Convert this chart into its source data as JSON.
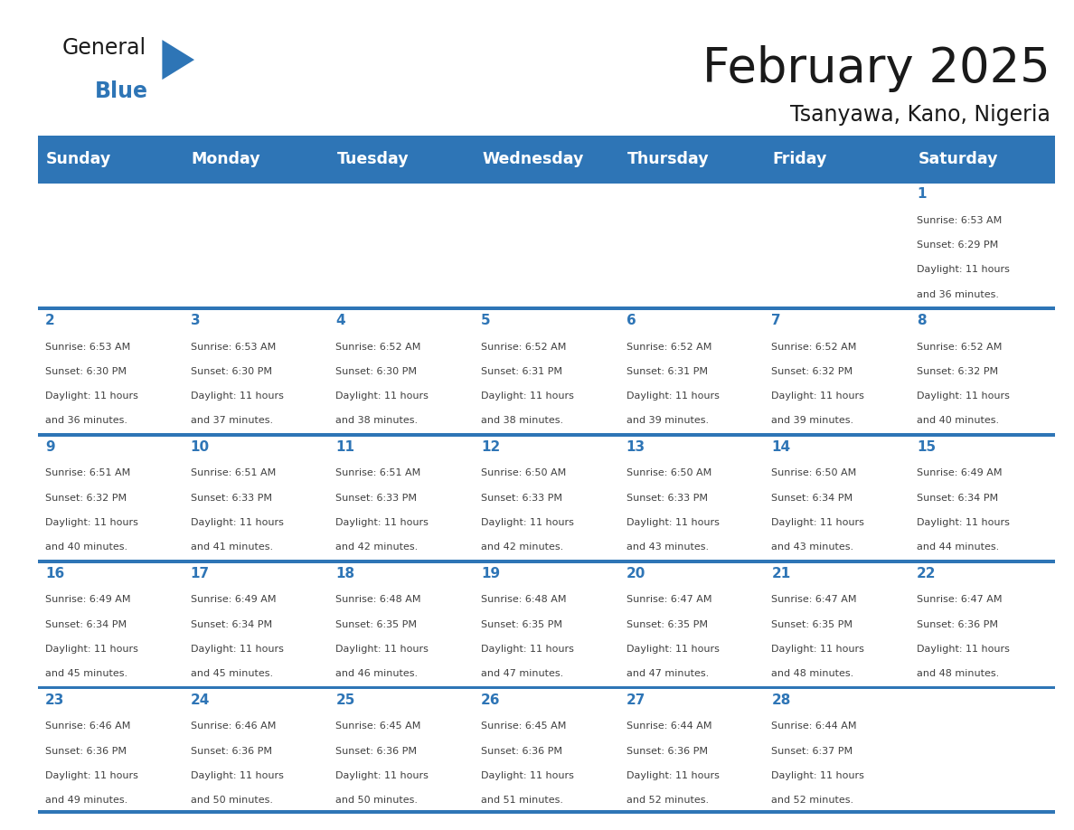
{
  "title": "February 2025",
  "subtitle": "Tsanyawa, Kano, Nigeria",
  "days_of_week": [
    "Sunday",
    "Monday",
    "Tuesday",
    "Wednesday",
    "Thursday",
    "Friday",
    "Saturday"
  ],
  "header_bg": "#2E75B6",
  "header_text": "#FFFFFF",
  "cell_bg_white": "#FFFFFF",
  "border_color": "#2E75B6",
  "text_color": "#404040",
  "day_number_color": "#2E75B6",
  "title_color": "#1A1A1A",
  "subtitle_color": "#1A1A1A",
  "logo_general_color": "#1A1A1A",
  "logo_blue_color": "#2E75B6",
  "calendar_data": [
    [
      null,
      null,
      null,
      null,
      null,
      null,
      {
        "day": 1,
        "sunrise": "6:53 AM",
        "sunset": "6:29 PM",
        "daylight": "11 hours and 36 minutes."
      }
    ],
    [
      {
        "day": 2,
        "sunrise": "6:53 AM",
        "sunset": "6:30 PM",
        "daylight": "11 hours and 36 minutes."
      },
      {
        "day": 3,
        "sunrise": "6:53 AM",
        "sunset": "6:30 PM",
        "daylight": "11 hours and 37 minutes."
      },
      {
        "day": 4,
        "sunrise": "6:52 AM",
        "sunset": "6:30 PM",
        "daylight": "11 hours and 38 minutes."
      },
      {
        "day": 5,
        "sunrise": "6:52 AM",
        "sunset": "6:31 PM",
        "daylight": "11 hours and 38 minutes."
      },
      {
        "day": 6,
        "sunrise": "6:52 AM",
        "sunset": "6:31 PM",
        "daylight": "11 hours and 39 minutes."
      },
      {
        "day": 7,
        "sunrise": "6:52 AM",
        "sunset": "6:32 PM",
        "daylight": "11 hours and 39 minutes."
      },
      {
        "day": 8,
        "sunrise": "6:52 AM",
        "sunset": "6:32 PM",
        "daylight": "11 hours and 40 minutes."
      }
    ],
    [
      {
        "day": 9,
        "sunrise": "6:51 AM",
        "sunset": "6:32 PM",
        "daylight": "11 hours and 40 minutes."
      },
      {
        "day": 10,
        "sunrise": "6:51 AM",
        "sunset": "6:33 PM",
        "daylight": "11 hours and 41 minutes."
      },
      {
        "day": 11,
        "sunrise": "6:51 AM",
        "sunset": "6:33 PM",
        "daylight": "11 hours and 42 minutes."
      },
      {
        "day": 12,
        "sunrise": "6:50 AM",
        "sunset": "6:33 PM",
        "daylight": "11 hours and 42 minutes."
      },
      {
        "day": 13,
        "sunrise": "6:50 AM",
        "sunset": "6:33 PM",
        "daylight": "11 hours and 43 minutes."
      },
      {
        "day": 14,
        "sunrise": "6:50 AM",
        "sunset": "6:34 PM",
        "daylight": "11 hours and 43 minutes."
      },
      {
        "day": 15,
        "sunrise": "6:49 AM",
        "sunset": "6:34 PM",
        "daylight": "11 hours and 44 minutes."
      }
    ],
    [
      {
        "day": 16,
        "sunrise": "6:49 AM",
        "sunset": "6:34 PM",
        "daylight": "11 hours and 45 minutes."
      },
      {
        "day": 17,
        "sunrise": "6:49 AM",
        "sunset": "6:34 PM",
        "daylight": "11 hours and 45 minutes."
      },
      {
        "day": 18,
        "sunrise": "6:48 AM",
        "sunset": "6:35 PM",
        "daylight": "11 hours and 46 minutes."
      },
      {
        "day": 19,
        "sunrise": "6:48 AM",
        "sunset": "6:35 PM",
        "daylight": "11 hours and 47 minutes."
      },
      {
        "day": 20,
        "sunrise": "6:47 AM",
        "sunset": "6:35 PM",
        "daylight": "11 hours and 47 minutes."
      },
      {
        "day": 21,
        "sunrise": "6:47 AM",
        "sunset": "6:35 PM",
        "daylight": "11 hours and 48 minutes."
      },
      {
        "day": 22,
        "sunrise": "6:47 AM",
        "sunset": "6:36 PM",
        "daylight": "11 hours and 48 minutes."
      }
    ],
    [
      {
        "day": 23,
        "sunrise": "6:46 AM",
        "sunset": "6:36 PM",
        "daylight": "11 hours and 49 minutes."
      },
      {
        "day": 24,
        "sunrise": "6:46 AM",
        "sunset": "6:36 PM",
        "daylight": "11 hours and 50 minutes."
      },
      {
        "day": 25,
        "sunrise": "6:45 AM",
        "sunset": "6:36 PM",
        "daylight": "11 hours and 50 minutes."
      },
      {
        "day": 26,
        "sunrise": "6:45 AM",
        "sunset": "6:36 PM",
        "daylight": "11 hours and 51 minutes."
      },
      {
        "day": 27,
        "sunrise": "6:44 AM",
        "sunset": "6:36 PM",
        "daylight": "11 hours and 52 minutes."
      },
      {
        "day": 28,
        "sunrise": "6:44 AM",
        "sunset": "6:37 PM",
        "daylight": "11 hours and 52 minutes."
      },
      null
    ]
  ],
  "figsize": [
    11.88,
    9.18
  ],
  "dpi": 100
}
